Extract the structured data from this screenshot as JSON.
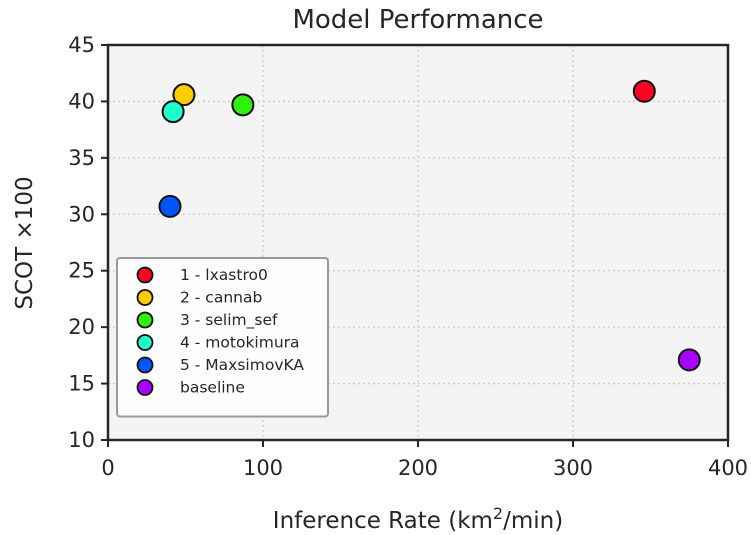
{
  "chart_data": {
    "type": "scatter",
    "title": "Model Performance",
    "xlabel_main": "Inference Rate (km",
    "xlabel_sup": "2",
    "xlabel_end": "/min)",
    "ylabel": "SCOT ×100",
    "xlim": [
      0,
      400
    ],
    "ylim": [
      10,
      45
    ],
    "x_ticks": [
      0,
      100,
      200,
      300,
      400
    ],
    "y_ticks": [
      10,
      15,
      20,
      25,
      30,
      35,
      40,
      45
    ],
    "grid": true,
    "legend_position": "lower-left",
    "series": [
      {
        "name": "1 - lxastro0",
        "color": "#ff0022",
        "x": [
          346
        ],
        "y": [
          40.9
        ]
      },
      {
        "name": "2 - cannab",
        "color": "#ffcc00",
        "x": [
          49
        ],
        "y": [
          40.6
        ]
      },
      {
        "name": "3 - selim_sef",
        "color": "#33ee11",
        "x": [
          87
        ],
        "y": [
          39.7
        ]
      },
      {
        "name": "4 - motokimura",
        "color": "#22ffcc",
        "x": [
          42
        ],
        "y": [
          39.1
        ]
      },
      {
        "name": "5 - MaxsimovKA",
        "color": "#0055ff",
        "x": [
          40
        ],
        "y": [
          30.7
        ]
      },
      {
        "name": "baseline",
        "color": "#aa00ff",
        "x": [
          375
        ],
        "y": [
          17.1
        ]
      }
    ]
  },
  "colors": {
    "plot_background": "#f4f4f4",
    "axis": "#262626",
    "grid": "#cccccc"
  }
}
